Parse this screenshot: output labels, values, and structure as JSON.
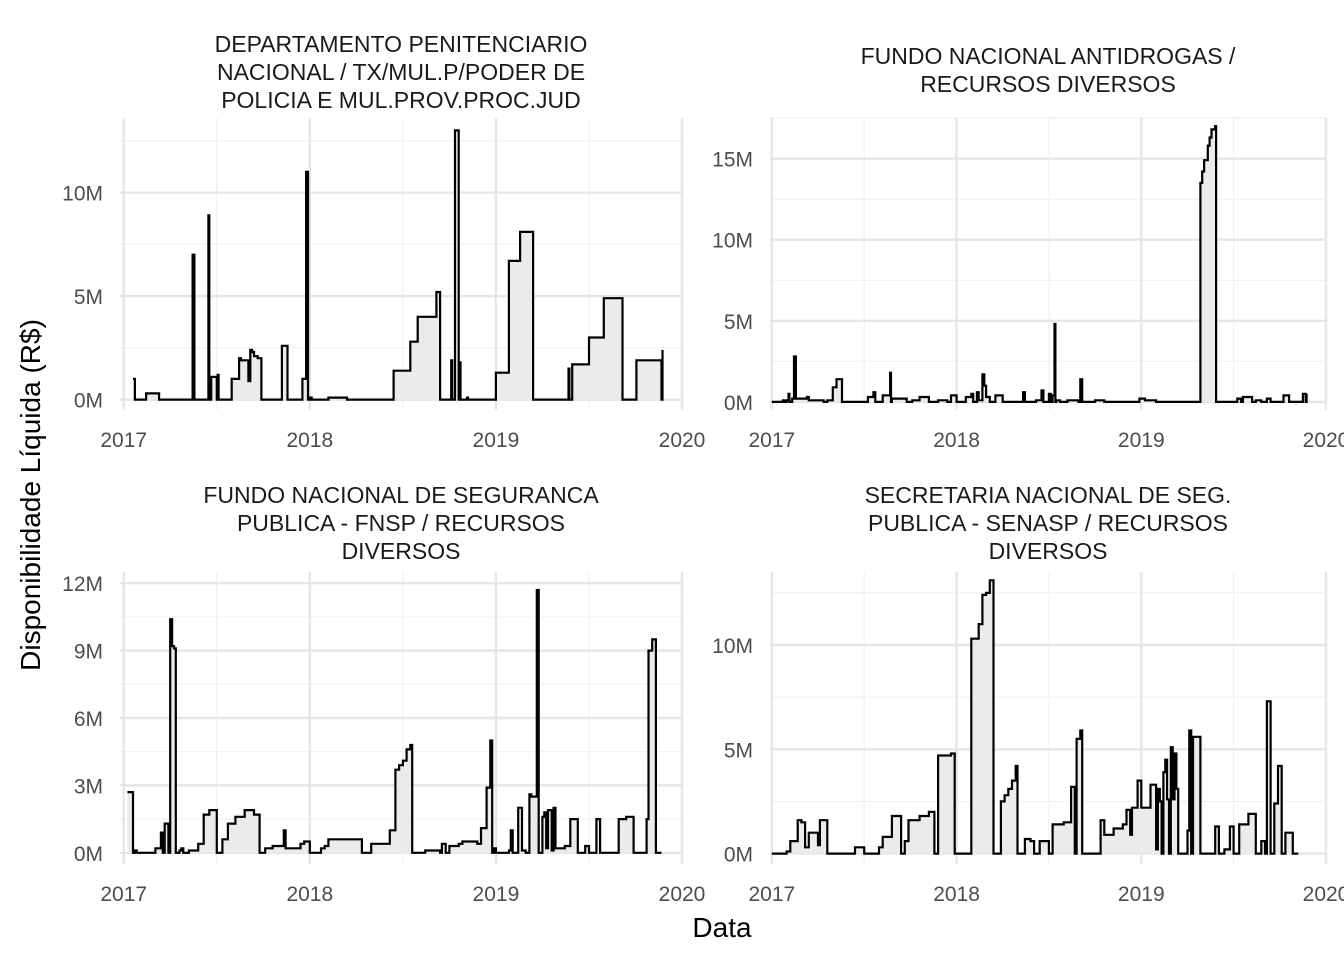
{
  "figure": {
    "ylabel": "Disponibilidade Líquida (R$)",
    "xlabel": "Data"
  },
  "chart_data": [
    {
      "type": "area",
      "title_lines": [
        "DEPARTAMENTO PENITENCIARIO",
        "NACIONAL / TX/MUL.P/PODER DE",
        "POLICIA E MUL.PROV.PROC.JUD"
      ],
      "x_ticks": [
        2017,
        2018,
        2019,
        2020
      ],
      "y_ticks": [
        0,
        5000000,
        10000000
      ],
      "y_tick_labels": [
        "0M",
        "5M",
        "10M"
      ],
      "xlim": [
        2016.98,
        2020.0
      ],
      "ylim": [
        -500000,
        13600000
      ],
      "step": true,
      "x": [
        2017.05,
        2017.06,
        2017.12,
        2017.19,
        2017.36,
        2017.37,
        2017.38,
        2017.45,
        2017.455,
        2017.46,
        2017.47,
        2017.5,
        2017.505,
        2017.51,
        2017.58,
        2017.62,
        2017.63,
        2017.67,
        2017.68,
        2017.69,
        2017.7,
        2017.72,
        2017.74,
        2017.78,
        2017.85,
        2017.86,
        2017.88,
        2017.95,
        2017.96,
        2017.98,
        2017.99,
        2018.0,
        2018.01,
        2018.1,
        2018.2,
        2018.28,
        2018.45,
        2018.54,
        2018.58,
        2018.68,
        2018.7,
        2018.71,
        2018.76,
        2018.765,
        2018.78,
        2018.8,
        2018.805,
        2018.81,
        2018.82,
        2018.845,
        2018.85,
        2019.0,
        2019.07,
        2019.13,
        2019.2,
        2019.25,
        2019.3,
        2019.39,
        2019.395,
        2019.41,
        2019.5,
        2019.58,
        2019.68,
        2019.75,
        2019.755,
        2019.89,
        2019.895
      ],
      "y": [
        1000000,
        0,
        300000,
        0,
        0,
        7000000,
        0,
        0,
        8900000,
        0,
        1100000,
        0,
        1200000,
        0,
        1000000,
        2000000,
        1900000,
        900000,
        2400000,
        2300000,
        2100000,
        2000000,
        0,
        0,
        2600000,
        2600000,
        0,
        0,
        1000000,
        11000000,
        0,
        100000,
        0,
        100000,
        0,
        0,
        1400000,
        2800000,
        4000000,
        5200000,
        0,
        0,
        1900000,
        0,
        13000000,
        0,
        1800000,
        0,
        0,
        100000,
        0,
        1300000,
        6700000,
        8100000,
        0,
        0,
        0,
        1500000,
        0,
        1700000,
        3000000,
        4900000,
        0,
        0,
        1900000,
        0,
        2400000
      ]
    },
    {
      "type": "area",
      "title_lines": [
        "FUNDO NACIONAL ANTIDROGAS /",
        "RECURSOS DIVERSOS"
      ],
      "x_ticks": [
        2017,
        2018,
        2019,
        2020
      ],
      "y_ticks": [
        0,
        5000000,
        10000000,
        15000000
      ],
      "y_tick_labels": [
        "0M",
        "5M",
        "10M",
        "15M"
      ],
      "xlim": [
        2016.99,
        2020.0
      ],
      "ylim": [
        -500000,
        17500000
      ],
      "step": true,
      "x": [
        2017.0,
        2017.06,
        2017.07,
        2017.08,
        2017.09,
        2017.095,
        2017.11,
        2017.12,
        2017.13,
        2017.19,
        2017.2,
        2017.28,
        2017.3,
        2017.33,
        2017.35,
        2017.38,
        2017.46,
        2017.52,
        2017.55,
        2017.56,
        2017.6,
        2017.64,
        2017.645,
        2017.65,
        2017.73,
        2017.76,
        2017.8,
        2017.85,
        2017.9,
        2017.95,
        2017.97,
        2018.0,
        2018.05,
        2018.08,
        2018.09,
        2018.11,
        2018.12,
        2018.14,
        2018.15,
        2018.16,
        2018.18,
        2018.21,
        2018.25,
        2018.32,
        2018.36,
        2018.37,
        2018.43,
        2018.46,
        2018.47,
        2018.5,
        2018.51,
        2018.52,
        2018.53,
        2018.535,
        2018.54,
        2018.56,
        2018.6,
        2018.66,
        2018.67,
        2018.68,
        2018.75,
        2018.8,
        2018.9,
        2018.99,
        2019.02,
        2019.08,
        2019.1,
        2019.2,
        2019.32,
        2019.33,
        2019.34,
        2019.36,
        2019.37,
        2019.38,
        2019.4,
        2019.405,
        2019.41,
        2019.47,
        2019.52,
        2019.54,
        2019.55,
        2019.6,
        2019.62,
        2019.65,
        2019.68,
        2019.7,
        2019.76,
        2019.77,
        2019.8,
        2019.87,
        2019.875,
        2019.89,
        2019.895
      ],
      "y": [
        0,
        100000,
        0,
        100000,
        500000,
        0,
        200000,
        2800000,
        200000,
        300000,
        100000,
        0,
        100000,
        900000,
        1400000,
        0,
        0,
        300000,
        600000,
        0,
        400000,
        1800000,
        0,
        200000,
        0,
        100000,
        300000,
        0,
        100000,
        0,
        400000,
        0,
        300000,
        500000,
        0,
        600000,
        100000,
        1700000,
        1000000,
        300000,
        0,
        400000,
        0,
        0,
        600000,
        0,
        100000,
        700000,
        0,
        500000,
        0,
        400000,
        4800000,
        0,
        100000,
        0,
        100000,
        0,
        1400000,
        0,
        100000,
        0,
        0,
        200000,
        100000,
        0,
        0,
        0,
        13500000,
        14200000,
        14900000,
        15800000,
        16300000,
        16800000,
        17000000,
        0,
        0,
        0,
        200000,
        0,
        300000,
        0,
        100000,
        0,
        200000,
        0,
        0,
        400000,
        0,
        0,
        500000,
        0,
        500000
      ]
    },
    {
      "type": "area",
      "title_lines": [
        "FUNDO NACIONAL DE SEGURANCA",
        "PUBLICA - FNSP / RECURSOS",
        "DIVERSOS"
      ],
      "x_ticks": [
        2017,
        2018,
        2019,
        2020
      ],
      "y_ticks": [
        0,
        3000000,
        6000000,
        9000000,
        12000000
      ],
      "y_tick_labels": [
        "0M",
        "3M",
        "6M",
        "9M",
        "12M"
      ],
      "xlim": [
        2016.98,
        2020.0
      ],
      "ylim": [
        -500000,
        12500000
      ],
      "step": true,
      "x": [
        2017.02,
        2017.05,
        2017.06,
        2017.07,
        2017.17,
        2017.2,
        2017.21,
        2017.22,
        2017.24,
        2017.25,
        2017.26,
        2017.27,
        2017.28,
        2017.3,
        2017.31,
        2017.32,
        2017.35,
        2017.4,
        2017.43,
        2017.46,
        2017.5,
        2017.53,
        2017.56,
        2017.6,
        2017.65,
        2017.7,
        2017.73,
        2017.76,
        2017.8,
        2017.86,
        2017.87,
        2017.95,
        2017.97,
        2018.0,
        2018.06,
        2018.08,
        2018.1,
        2018.2,
        2018.28,
        2018.33,
        2018.43,
        2018.46,
        2018.48,
        2018.5,
        2018.52,
        2018.54,
        2018.55,
        2018.62,
        2018.7,
        2018.71,
        2018.73,
        2018.75,
        2018.8,
        2018.82,
        2018.9,
        2018.92,
        2018.95,
        2018.97,
        2018.98,
        2018.99,
        2019.0,
        2019.07,
        2019.08,
        2019.09,
        2019.12,
        2019.14,
        2019.16,
        2019.18,
        2019.19,
        2019.22,
        2019.23,
        2019.25,
        2019.26,
        2019.27,
        2019.28,
        2019.3,
        2019.31,
        2019.32,
        2019.37,
        2019.4,
        2019.44,
        2019.48,
        2019.5,
        2019.51,
        2019.53,
        2019.54,
        2019.56,
        2019.57,
        2019.58,
        2019.65,
        2019.66,
        2019.7,
        2019.74,
        2019.78,
        2019.79,
        2019.8,
        2019.81,
        2019.82,
        2019.84,
        2019.86,
        2019.88,
        2019.89
      ],
      "y": [
        2700000,
        0,
        100000,
        0,
        200000,
        900000,
        0,
        1300000,
        0,
        10400000,
        9200000,
        9100000,
        0,
        100000,
        200000,
        0,
        100000,
        400000,
        1700000,
        1900000,
        0,
        600000,
        1300000,
        1600000,
        1900000,
        1700000,
        0,
        200000,
        300000,
        1000000,
        200000,
        400000,
        500000,
        0,
        200000,
        300000,
        600000,
        600000,
        0,
        400000,
        1000000,
        3700000,
        3900000,
        4100000,
        4600000,
        4800000,
        0,
        100000,
        0,
        400000,
        0,
        300000,
        400000,
        500000,
        400000,
        1100000,
        2900000,
        5000000,
        0,
        200000,
        0,
        100000,
        1000000,
        0,
        2000000,
        100000,
        0,
        2600000,
        2500000,
        11700000,
        0,
        1600000,
        1800000,
        200000,
        1900000,
        100000,
        2000000,
        200000,
        300000,
        1500000,
        0,
        300000,
        0,
        0,
        0,
        1500000,
        0,
        0,
        0,
        0,
        1500000,
        1600000,
        0,
        0,
        0,
        0,
        1500000,
        9000000,
        9500000,
        0,
        0,
        0
      ]
    },
    {
      "type": "area",
      "title_lines": [
        "SECRETARIA NACIONAL DE SEG.",
        "PUBLICA - SENASP / RECURSOS",
        "DIVERSOS"
      ],
      "x_ticks": [
        2017,
        2018,
        2019,
        2020
      ],
      "y_ticks": [
        0,
        5000000,
        10000000
      ],
      "y_tick_labels": [
        "0M",
        "5M",
        "10M"
      ],
      "xlim": [
        2016.99,
        2020.0
      ],
      "ylim": [
        -500000,
        13500000
      ],
      "step": true,
      "x": [
        2017.0,
        2017.08,
        2017.1,
        2017.14,
        2017.16,
        2017.18,
        2017.2,
        2017.25,
        2017.26,
        2017.3,
        2017.33,
        2017.45,
        2017.5,
        2017.55,
        2017.56,
        2017.58,
        2017.6,
        2017.65,
        2017.7,
        2017.72,
        2017.74,
        2017.8,
        2017.85,
        2017.88,
        2017.9,
        2017.92,
        2017.97,
        2017.99,
        2018.08,
        2018.12,
        2018.14,
        2018.16,
        2018.18,
        2018.2,
        2018.22,
        2018.24,
        2018.26,
        2018.28,
        2018.3,
        2018.32,
        2018.33,
        2018.35,
        2018.37,
        2018.4,
        2018.42,
        2018.45,
        2018.5,
        2018.52,
        2018.58,
        2018.62,
        2018.64,
        2018.65,
        2018.67,
        2018.68,
        2018.72,
        2018.78,
        2018.8,
        2018.85,
        2018.9,
        2018.92,
        2018.94,
        2018.95,
        2018.98,
        2019.0,
        2019.05,
        2019.08,
        2019.09,
        2019.1,
        2019.11,
        2019.12,
        2019.13,
        2019.14,
        2019.15,
        2019.16,
        2019.17,
        2019.18,
        2019.19,
        2019.2,
        2019.22,
        2019.24,
        2019.25,
        2019.26,
        2019.27,
        2019.28,
        2019.3,
        2019.32,
        2019.38,
        2019.4,
        2019.42,
        2019.45,
        2019.48,
        2019.5,
        2019.52,
        2019.53,
        2019.58,
        2019.62,
        2019.65,
        2019.67,
        2019.68,
        2019.7,
        2019.72,
        2019.74,
        2019.76,
        2019.78,
        2019.82,
        2019.85
      ],
      "y": [
        0,
        100000,
        600000,
        1600000,
        1500000,
        300000,
        1000000,
        400000,
        1600000,
        0,
        0,
        300000,
        0,
        0,
        0,
        300000,
        800000,
        1800000,
        0,
        600000,
        1600000,
        1800000,
        2000000,
        0,
        4700000,
        4700000,
        4800000,
        0,
        10300000,
        11000000,
        12400000,
        12500000,
        13100000,
        0,
        0,
        2500000,
        2800000,
        3100000,
        3500000,
        4200000,
        0,
        0,
        700000,
        600000,
        0,
        600000,
        0,
        1400000,
        1500000,
        3200000,
        0,
        5500000,
        5900000,
        0,
        0,
        1600000,
        900000,
        1200000,
        1400000,
        2100000,
        900000,
        2200000,
        3500000,
        2200000,
        3300000,
        200000,
        3100000,
        2500000,
        0,
        3900000,
        4500000,
        2600000,
        0,
        5100000,
        2600000,
        4800000,
        3100000,
        0,
        0,
        0,
        1100000,
        5900000,
        0,
        5600000,
        5600000,
        0,
        0,
        1300000,
        0,
        200000,
        1300000,
        0,
        0,
        1400000,
        1900000,
        0,
        600000,
        0,
        7300000,
        0,
        2400000,
        4200000,
        0,
        1000000,
        0,
        0
      ]
    }
  ]
}
